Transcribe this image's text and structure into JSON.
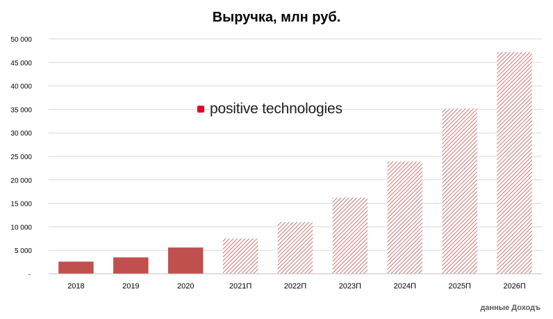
{
  "logo": {
    "text": "positive technologies",
    "mark_color": "#e4002b"
  },
  "source_note": "данные Доходъ",
  "colors": {
    "actual": "#c0504d",
    "forecast_hatch": "#c0504d",
    "grid": "#d9d9d9"
  },
  "chart_data": {
    "type": "bar",
    "title": "Выручка, млн руб.",
    "xlabel": "",
    "ylabel": "",
    "ylim": [
      0,
      50000
    ],
    "yticks": [
      0,
      5000,
      10000,
      15000,
      20000,
      25000,
      30000,
      35000,
      40000,
      45000,
      50000
    ],
    "ytick_labels": [
      "-",
      "5 000",
      "10 000",
      "15 000",
      "20 000",
      "25 000",
      "30 000",
      "35 000",
      "40 000",
      "45 000",
      "50 000"
    ],
    "grid": true,
    "categories": [
      "2018",
      "2019",
      "2020",
      "2021П",
      "2022П",
      "2023П",
      "2024П",
      "2025П",
      "2026П"
    ],
    "values": [
      2600,
      3500,
      5600,
      7500,
      11000,
      16200,
      23900,
      35200,
      47200
    ],
    "styles": [
      "solid",
      "solid",
      "solid",
      "hatched",
      "hatched",
      "hatched",
      "hatched",
      "hatched",
      "hatched"
    ]
  }
}
